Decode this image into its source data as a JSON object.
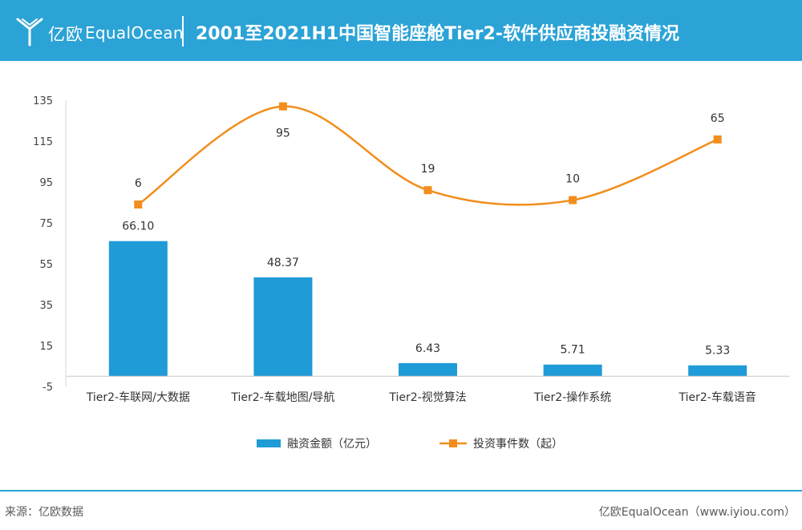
{
  "header": {
    "logo_cn": "亿欧",
    "logo_en": "EqualOcean",
    "title": "2001至2021H1中国智能座舱Tier2-软件供应商投融资情况",
    "background_color": "#2ba3d6"
  },
  "footer": {
    "source": "来源：亿欧数据",
    "credit": "亿欧EqualOcean（www.iyiou.com）"
  },
  "chart_data": {
    "type": "bar",
    "categories": [
      "Tier2-车联网/大数据",
      "Tier2-车载地图/导航",
      "Tier2-视觉算法",
      "Tier2-操作系统",
      "Tier2-车载语音"
    ],
    "yticks": [
      "135",
      "115",
      "95",
      "75",
      "55",
      "35",
      "15",
      "-5"
    ],
    "ylim": [
      -5,
      135
    ],
    "series": [
      {
        "name": "融资金额（亿元）",
        "type": "bar",
        "color": "#1f9bd7",
        "values": [
          66.1,
          48.37,
          6.43,
          5.71,
          5.33
        ],
        "labels": [
          "66.10",
          "48.37",
          "6.43",
          "5.71",
          "5.33"
        ]
      },
      {
        "name": "投资事件数（起）",
        "type": "line",
        "color": "#f28e1c",
        "values": [
          6,
          95,
          19,
          10,
          65
        ],
        "labels": [
          "6",
          "95",
          "19",
          "10",
          "65"
        ]
      }
    ],
    "legend_position": "bottom"
  }
}
